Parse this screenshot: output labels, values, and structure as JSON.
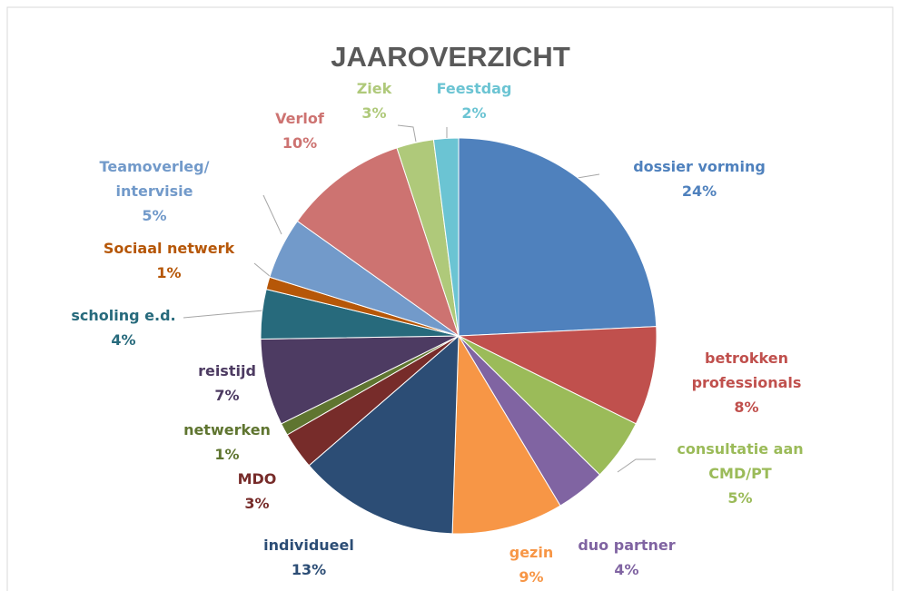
{
  "chart_data": {
    "type": "pie",
    "title": "JAAROVERZICHT",
    "categories": [
      "dossier vorming",
      "betrokken professionals",
      "consultatie aan CMD/PT",
      "duo partner",
      "gezin",
      "individueel",
      "MDO",
      "netwerken",
      "reistijd",
      "scholing e.d.",
      "Sociaal netwerk",
      "Teamoverleg/ intervisie",
      "Verlof",
      "Ziek",
      "Feestdag"
    ],
    "values": [
      24,
      8,
      5,
      4,
      9,
      13,
      3,
      1,
      7,
      4,
      1,
      5,
      10,
      3,
      2
    ],
    "value_labels": [
      "24%",
      "8%",
      "5%",
      "4%",
      "9%",
      "13%",
      "3%",
      "1%",
      "7%",
      "4%",
      "1%",
      "5%",
      "10%",
      "3%",
      "2%"
    ],
    "colors": [
      "#4f81bd",
      "#c0504d",
      "#9bbb59",
      "#8064a2",
      "#f79646",
      "#2c4d75",
      "#772c2a",
      "#5f7530",
      "#4d3b62",
      "#276a7c",
      "#b65708",
      "#729aca",
      "#cd7371",
      "#afc97a",
      "#6bc4d3"
    ]
  }
}
